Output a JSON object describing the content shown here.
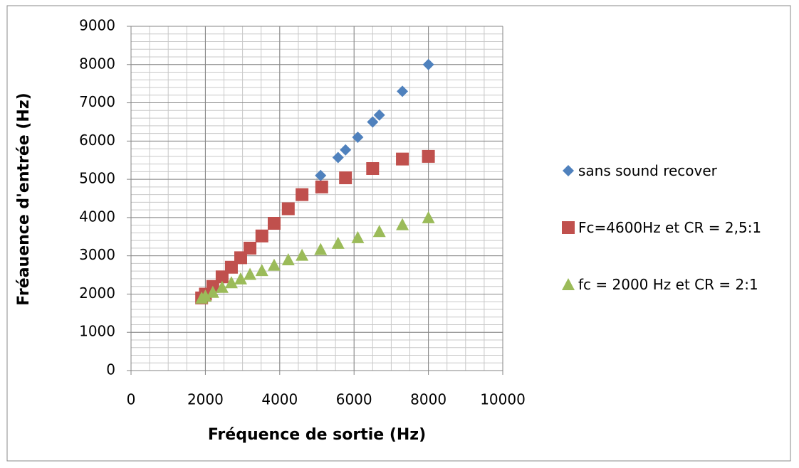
{
  "chart_data": {
    "type": "scatter",
    "xlabel": "Fréquence de sortie (Hz)",
    "ylabel": "Fréauence d'entrée (Hz)",
    "xlim": [
      0,
      10000
    ],
    "xticks": [
      0,
      2000,
      4000,
      6000,
      8000,
      10000
    ],
    "ylim": [
      0,
      9000
    ],
    "yticks": [
      0,
      1000,
      2000,
      3000,
      4000,
      5000,
      6000,
      7000,
      8000,
      9000
    ],
    "grid": true,
    "minor_grid": {
      "x": 500,
      "y": 200
    },
    "legend": "right",
    "series": [
      {
        "name": "sans sound recover",
        "color": "#4f81bd",
        "marker": "diamond",
        "x": [
          1900,
          2000,
          2200,
          2450,
          2700,
          2950,
          3200,
          3520,
          3850,
          4230,
          4600,
          5100,
          5570,
          5770,
          6100,
          6500,
          6680,
          7300,
          8000
        ],
        "values": [
          1900,
          2000,
          2200,
          2450,
          2700,
          2950,
          3200,
          3520,
          3850,
          4230,
          4600,
          5100,
          5570,
          5770,
          6100,
          6500,
          6680,
          7300,
          8000
        ]
      },
      {
        "name": "Fc=4600Hz et CR = 2,5:1",
        "color": "#c0504d",
        "marker": "square",
        "x": [
          1900,
          2000,
          2200,
          2450,
          2700,
          2950,
          3200,
          3520,
          3850,
          4230,
          4600,
          5130,
          5770,
          6500,
          7300,
          8000
        ],
        "values": [
          1900,
          2000,
          2200,
          2450,
          2700,
          2950,
          3200,
          3520,
          3850,
          4230,
          4600,
          4800,
          5040,
          5280,
          5530,
          5600
        ]
      },
      {
        "name": "fc = 2000 Hz et CR = 2:1",
        "color": "#9bbb59",
        "marker": "triangle",
        "x": [
          1900,
          2000,
          2200,
          2450,
          2700,
          2950,
          3200,
          3520,
          3850,
          4230,
          4600,
          5100,
          5570,
          6100,
          6680,
          7300,
          8000
        ],
        "values": [
          1900,
          1950,
          2050,
          2180,
          2300,
          2400,
          2520,
          2620,
          2760,
          2900,
          3020,
          3170,
          3330,
          3480,
          3640,
          3820,
          4000
        ]
      }
    ]
  }
}
